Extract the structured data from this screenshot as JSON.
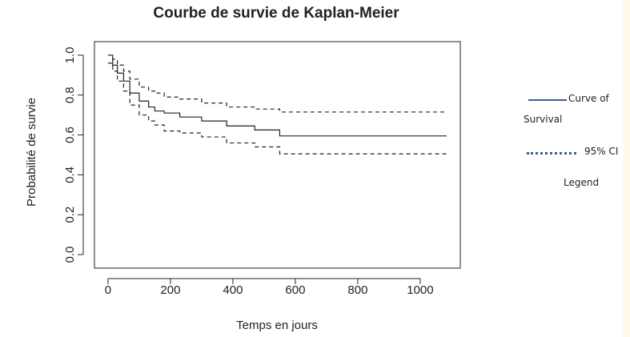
{
  "chart_data": {
    "type": "step",
    "title": "Courbe de survie de Kaplan-Meier",
    "x_label": "Temps en jours",
    "y_label": "Probabilité de survie",
    "x": [
      0,
      15,
      30,
      50,
      70,
      100,
      130,
      150,
      180,
      230,
      300,
      380,
      470,
      550,
      1085
    ],
    "series": [
      {
        "name": "Curve of Survival",
        "color": "#222222",
        "dash": false,
        "values": [
          1.0,
          0.95,
          0.91,
          0.87,
          0.81,
          0.77,
          0.74,
          0.72,
          0.71,
          0.69,
          0.67,
          0.645,
          0.625,
          0.595,
          0.595
        ]
      },
      {
        "name": "95% CI",
        "color": "#222222",
        "dash": true,
        "values": [
          1.0,
          0.98,
          0.95,
          0.92,
          0.88,
          0.84,
          0.82,
          0.81,
          0.79,
          0.78,
          0.76,
          0.74,
          0.73,
          0.715,
          0.715
        ]
      },
      {
        "color": "#222222",
        "dash": true,
        "values": [
          0.96,
          0.92,
          0.87,
          0.82,
          0.75,
          0.7,
          0.67,
          0.65,
          0.62,
          0.61,
          0.59,
          0.56,
          0.54,
          0.505,
          0.505
        ]
      }
    ],
    "xlim": [
      -43.4,
      1128.4
    ],
    "ylim": [
      -0.068,
      1.068
    ],
    "xticks": [
      0,
      200,
      400,
      600,
      800,
      1000
    ],
    "yticks": [
      {
        "value": 0,
        "label": "0.0"
      },
      0.2,
      0.4,
      0.6,
      0.8,
      {
        "value": 1,
        "label": "1.0"
      }
    ],
    "legend_title": "Legend"
  }
}
